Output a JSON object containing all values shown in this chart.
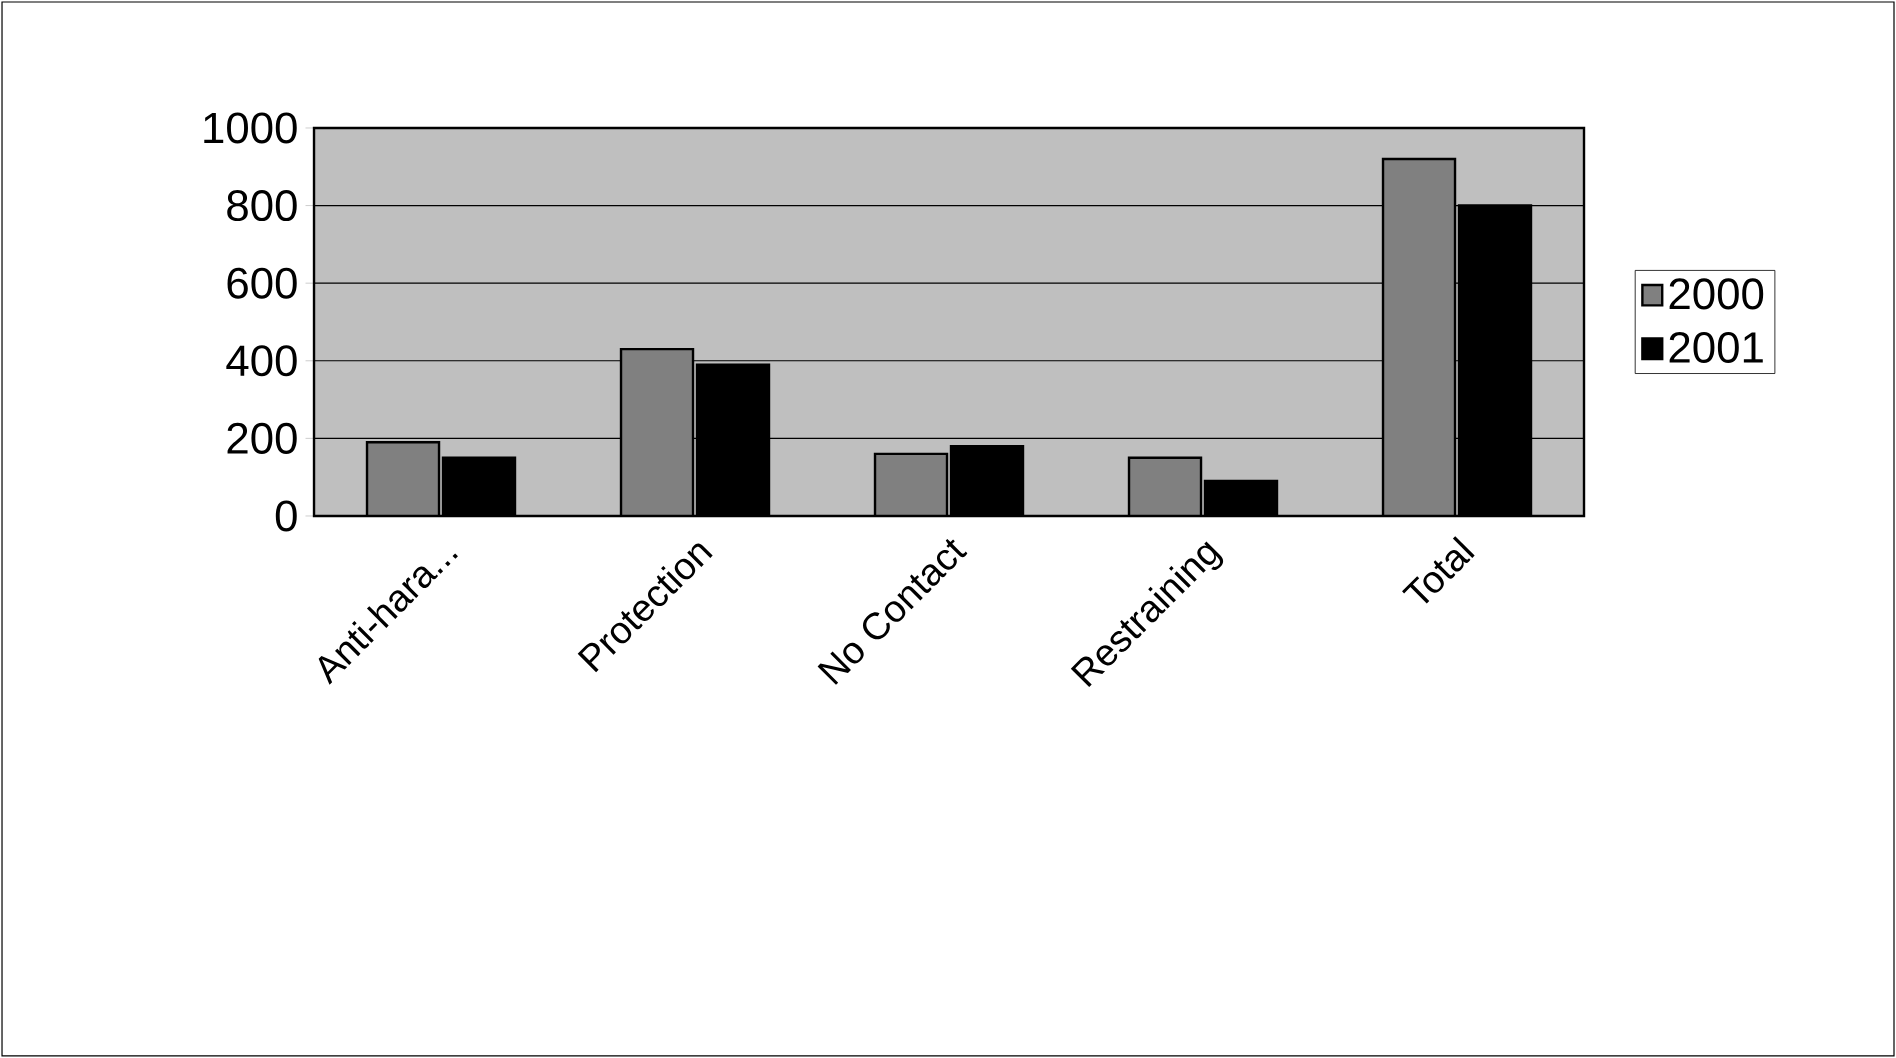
{
  "chart_data": {
    "type": "bar",
    "categories": [
      "Anti-hara...",
      "Protection",
      "No Contact",
      "Restraining",
      "Total"
    ],
    "series": [
      {
        "name": "2000",
        "color": "#808080",
        "values": [
          190,
          430,
          160,
          150,
          920
        ]
      },
      {
        "name": "2001",
        "color": "#000000",
        "values": [
          150,
          390,
          180,
          90,
          800
        ]
      }
    ],
    "ylim": [
      0,
      1000
    ],
    "yticks": [
      0,
      200,
      400,
      600,
      800,
      1000
    ],
    "grid": "y",
    "legend": "right"
  }
}
